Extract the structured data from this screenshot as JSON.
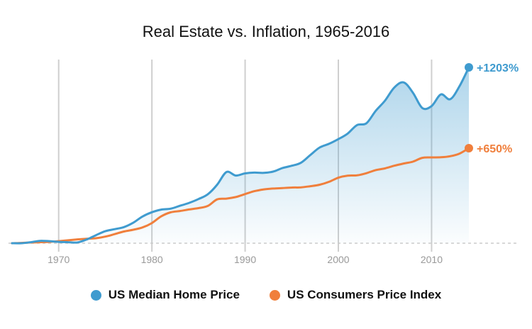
{
  "chart_data": {
    "type": "area",
    "title": "Real Estate vs. Inflation, 1965-2016",
    "xlabel": "",
    "ylabel": "",
    "x_ticks": [
      1970,
      1980,
      1990,
      2000,
      2010
    ],
    "xlim": [
      1964.5,
      2016.5
    ],
    "ylim": [
      -40,
      1300
    ],
    "grid": "vertical",
    "legend_position": "bottom",
    "series": [
      {
        "name": "US Median Home Price",
        "color": "#3f9bcf",
        "end_label": "+1203%",
        "fill": "gradient",
        "points": [
          [
            1965,
            0
          ],
          [
            1966,
            0
          ],
          [
            1967,
            7
          ],
          [
            1968,
            16
          ],
          [
            1969,
            14
          ],
          [
            1970,
            9
          ],
          [
            1971,
            7
          ],
          [
            1972,
            5
          ],
          [
            1973,
            25
          ],
          [
            1974,
            55
          ],
          [
            1975,
            82
          ],
          [
            1976,
            96
          ],
          [
            1977,
            110
          ],
          [
            1978,
            140
          ],
          [
            1979,
            183
          ],
          [
            1980,
            212
          ],
          [
            1981,
            230
          ],
          [
            1982,
            236
          ],
          [
            1983,
            256
          ],
          [
            1984,
            276
          ],
          [
            1985,
            302
          ],
          [
            1986,
            335
          ],
          [
            1987,
            400
          ],
          [
            1988,
            487
          ],
          [
            1989,
            463
          ],
          [
            1990,
            478
          ],
          [
            1991,
            483
          ],
          [
            1992,
            481
          ],
          [
            1993,
            490
          ],
          [
            1994,
            514
          ],
          [
            1995,
            530
          ],
          [
            1996,
            551
          ],
          [
            1997,
            604
          ],
          [
            1998,
            655
          ],
          [
            1999,
            680
          ],
          [
            2000,
            712
          ],
          [
            2001,
            750
          ],
          [
            2002,
            808
          ],
          [
            2003,
            820
          ],
          [
            2004,
            905
          ],
          [
            2005,
            975
          ],
          [
            2006,
            1065
          ],
          [
            2007,
            1100
          ],
          [
            2008,
            1030
          ],
          [
            2009,
            925
          ],
          [
            2010,
            938
          ],
          [
            2011,
            1018
          ],
          [
            2012,
            985
          ],
          [
            2013,
            1075
          ],
          [
            2014,
            1203
          ]
        ]
      },
      {
        "name": "US Consumers Price Index",
        "color": "#f07f3c",
        "end_label": "+650%",
        "fill": "none",
        "points": [
          [
            1965,
            0
          ],
          [
            1966,
            2
          ],
          [
            1967,
            5
          ],
          [
            1968,
            7
          ],
          [
            1969,
            9
          ],
          [
            1970,
            14
          ],
          [
            1971,
            20
          ],
          [
            1972,
            26
          ],
          [
            1973,
            30
          ],
          [
            1974,
            34
          ],
          [
            1975,
            45
          ],
          [
            1976,
            62
          ],
          [
            1977,
            80
          ],
          [
            1978,
            92
          ],
          [
            1979,
            108
          ],
          [
            1980,
            138
          ],
          [
            1981,
            184
          ],
          [
            1982,
            211
          ],
          [
            1983,
            220
          ],
          [
            1984,
            231
          ],
          [
            1985,
            240
          ],
          [
            1986,
            255
          ],
          [
            1987,
            300
          ],
          [
            1988,
            305
          ],
          [
            1989,
            316
          ],
          [
            1990,
            336
          ],
          [
            1991,
            356
          ],
          [
            1992,
            368
          ],
          [
            1993,
            374
          ],
          [
            1994,
            377
          ],
          [
            1995,
            381
          ],
          [
            1996,
            382
          ],
          [
            1997,
            390
          ],
          [
            1998,
            400
          ],
          [
            1999,
            420
          ],
          [
            2000,
            448
          ],
          [
            2001,
            462
          ],
          [
            2002,
            464
          ],
          [
            2003,
            479
          ],
          [
            2004,
            500
          ],
          [
            2005,
            512
          ],
          [
            2006,
            530
          ],
          [
            2007,
            545
          ],
          [
            2008,
            558
          ],
          [
            2009,
            584
          ],
          [
            2010,
            587
          ],
          [
            2011,
            588
          ],
          [
            2012,
            595
          ],
          [
            2013,
            613
          ],
          [
            2014,
            650
          ]
        ]
      }
    ]
  }
}
